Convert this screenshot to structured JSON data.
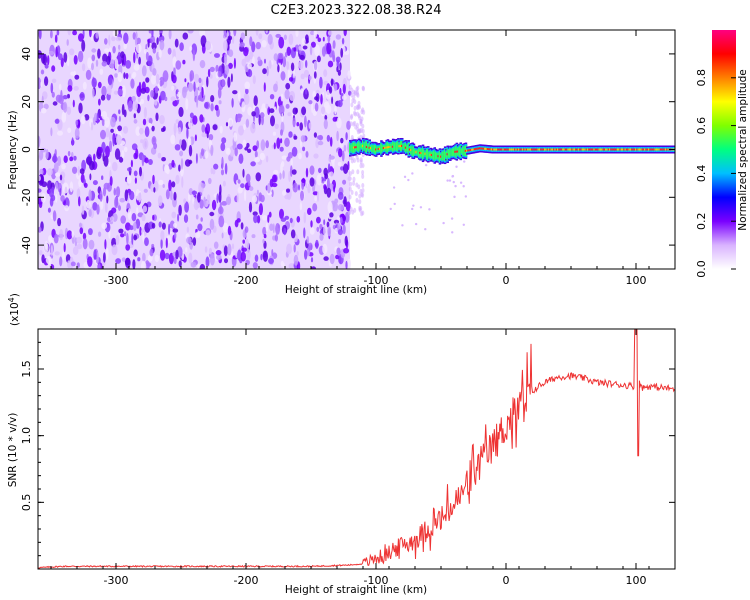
{
  "title": "C2E3.2023.322.08.38.R24",
  "chart_data": [
    {
      "type": "heatmap",
      "name": "spectrogram",
      "xlabel": "Height of straight line (km)",
      "ylabel": "Frequency (Hz)",
      "xlim": [
        -360,
        130
      ],
      "ylim": [
        -50,
        50
      ],
      "x_ticks": [
        "-300",
        "-200",
        "-100",
        "0",
        "100"
      ],
      "x_tick_values": [
        -300,
        -200,
        -100,
        0,
        100
      ],
      "y_ticks": [
        "-40",
        "-20",
        "0",
        "20",
        "40"
      ],
      "y_tick_values": [
        -40,
        -20,
        0,
        20,
        40
      ],
      "noise_region_x": [
        -360,
        -120
      ],
      "signal_track": [
        {
          "x": -120,
          "y": 0.5
        },
        {
          "x": -110,
          "y": 1.5
        },
        {
          "x": -100,
          "y": 0.0
        },
        {
          "x": -90,
          "y": 1.0
        },
        {
          "x": -80,
          "y": 1.5
        },
        {
          "x": -70,
          "y": -1.0
        },
        {
          "x": -60,
          "y": -2.0
        },
        {
          "x": -50,
          "y": -3.0
        },
        {
          "x": -40,
          "y": -1.0
        },
        {
          "x": -30,
          "y": -0.5
        },
        {
          "x": -20,
          "y": 0.5
        },
        {
          "x": -10,
          "y": 0.0
        },
        {
          "x": 0,
          "y": 0.0
        },
        {
          "x": 130,
          "y": 0.0
        }
      ],
      "grid": false
    },
    {
      "type": "colorbar",
      "label": "Normalized spectral amplitude",
      "range": [
        0.0,
        1.0
      ],
      "ticks": [
        "0.0",
        "0.2",
        "0.4",
        "0.6",
        "0.8"
      ],
      "tick_values": [
        0.0,
        0.2,
        0.4,
        0.6,
        0.8
      ],
      "colors": [
        "#ffffff",
        "#d9b3ff",
        "#7a00ff",
        "#0000ff",
        "#00bfff",
        "#00ff80",
        "#80ff00",
        "#ffff00",
        "#ff8000",
        "#ff0000",
        "#ff0080"
      ]
    },
    {
      "type": "line",
      "name": "snr",
      "xlabel": "Height of straight line (km)",
      "ylabel": "SNR (10 * v/v)",
      "y_multiplier": "(x10",
      "y_multiplier_exp": "4",
      "y_multiplier_close": ")",
      "xlim": [
        -360,
        130
      ],
      "ylim": [
        0,
        1.8
      ],
      "x_ticks": [
        "-300",
        "-200",
        "-100",
        "0",
        "100"
      ],
      "x_tick_values": [
        -300,
        -200,
        -100,
        0,
        100
      ],
      "y_ticks": [
        "0.5",
        "1.0",
        "1.5"
      ],
      "y_tick_values": [
        0.5,
        1.0,
        1.5
      ],
      "color": "#ee3333",
      "x": [
        -360,
        -340,
        -300,
        -250,
        -200,
        -150,
        -120,
        -110,
        -100,
        -95,
        -90,
        -85,
        -80,
        -75,
        -70,
        -65,
        -60,
        -55,
        -50,
        -45,
        -40,
        -35,
        -30,
        -25,
        -20,
        -15,
        -10,
        -5,
        0,
        5,
        10,
        15,
        20,
        25,
        30,
        40,
        50,
        60,
        70,
        80,
        90,
        100,
        102,
        105,
        110,
        120,
        130
      ],
      "y": [
        0.01,
        0.02,
        0.02,
        0.02,
        0.02,
        0.02,
        0.03,
        0.04,
        0.08,
        0.1,
        0.12,
        0.15,
        0.18,
        0.2,
        0.22,
        0.26,
        0.3,
        0.33,
        0.38,
        0.42,
        0.48,
        0.55,
        0.62,
        0.7,
        0.78,
        0.85,
        0.92,
        1.0,
        1.08,
        1.14,
        1.2,
        1.27,
        1.33,
        1.37,
        1.4,
        1.44,
        1.45,
        1.43,
        1.4,
        1.39,
        1.38,
        1.37,
        1.4,
        1.36,
        1.37,
        1.36,
        1.35
      ],
      "grid": false
    }
  ]
}
